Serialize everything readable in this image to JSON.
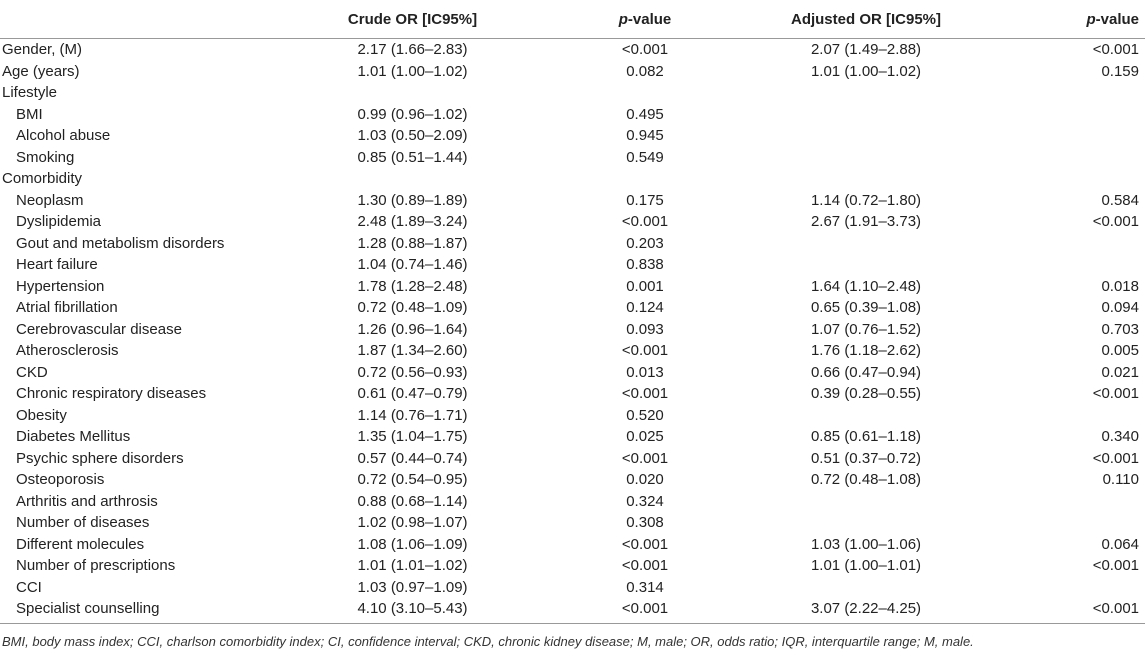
{
  "table": {
    "header": [
      null,
      "Crude OR [IC95%]",
      "p-value",
      "Adjusted OR [IC95%]",
      "p-value"
    ],
    "rows": [
      {
        "cells": [
          "Gender, (M)",
          "2.17 (1.66–2.83)",
          "<0.001",
          "2.07 (1.49–2.88)",
          "<0.001"
        ]
      },
      {
        "cells": [
          "Age (years)",
          "1.01 (1.00–1.02)",
          "0.082",
          "1.01 (1.00–1.02)",
          "0.159"
        ]
      },
      {
        "cells": [
          "Lifestyle",
          null,
          null,
          null,
          null
        ]
      },
      {
        "cells": [
          "BMI",
          "0.99 (0.96–1.02)",
          "0.495",
          null,
          null
        ],
        "indent": true
      },
      {
        "cells": [
          "Alcohol abuse",
          "1.03 (0.50–2.09)",
          "0.945",
          null,
          null
        ],
        "indent": true
      },
      {
        "cells": [
          "Smoking",
          "0.85 (0.51–1.44)",
          "0.549",
          null,
          null
        ],
        "indent": true
      },
      {
        "cells": [
          "Comorbidity",
          null,
          null,
          null,
          null
        ]
      },
      {
        "cells": [
          "Neoplasm",
          "1.30 (0.89–1.89)",
          "0.175",
          "1.14 (0.72–1.80)",
          "0.584"
        ],
        "indent": true
      },
      {
        "cells": [
          "Dyslipidemia",
          "2.48 (1.89–3.24)",
          "<0.001",
          "2.67 (1.91–3.73)",
          "<0.001"
        ],
        "indent": true
      },
      {
        "cells": [
          "Gout and metabolism disorders",
          "1.28 (0.88–1.87)",
          "0.203",
          null,
          null
        ],
        "indent": true
      },
      {
        "cells": [
          "Heart failure",
          "1.04 (0.74–1.46)",
          "0.838",
          null,
          null
        ],
        "indent": true
      },
      {
        "cells": [
          "Hypertension",
          "1.78 (1.28–2.48)",
          "0.001",
          "1.64 (1.10–2.48)",
          "0.018"
        ],
        "indent": true
      },
      {
        "cells": [
          "Atrial fibrillation",
          "0.72 (0.48–1.09)",
          "0.124",
          "0.65 (0.39–1.08)",
          "0.094"
        ],
        "indent": true
      },
      {
        "cells": [
          "Cerebrovascular disease",
          "1.26 (0.96–1.64)",
          "0.093",
          "1.07 (0.76–1.52)",
          "0.703"
        ],
        "indent": true
      },
      {
        "cells": [
          "Atherosclerosis",
          "1.87 (1.34–2.60)",
          "<0.001",
          "1.76 (1.18–2.62)",
          "0.005"
        ],
        "indent": true
      },
      {
        "cells": [
          "CKD",
          "0.72 (0.56–0.93)",
          "0.013",
          "0.66 (0.47–0.94)",
          "0.021"
        ],
        "indent": true
      },
      {
        "cells": [
          "Chronic respiratory diseases",
          "0.61 (0.47–0.79)",
          "<0.001",
          "0.39 (0.28–0.55)",
          "<0.001"
        ],
        "indent": true
      },
      {
        "cells": [
          "Obesity",
          "1.14 (0.76–1.71)",
          "0.520",
          null,
          null
        ],
        "indent": true
      },
      {
        "cells": [
          "Diabetes Mellitus",
          "1.35 (1.04–1.75)",
          "0.025",
          "0.85 (0.61–1.18)",
          "0.340"
        ],
        "indent": true
      },
      {
        "cells": [
          "Psychic sphere disorders",
          "0.57 (0.44–0.74)",
          "<0.001",
          "0.51 (0.37–0.72)",
          "<0.001"
        ],
        "indent": true
      },
      {
        "cells": [
          "Osteoporosis",
          "0.72 (0.54–0.95)",
          "0.020",
          "0.72 (0.48–1.08)",
          "0.110"
        ],
        "indent": true
      },
      {
        "cells": [
          "Arthritis and arthrosis",
          "0.88 (0.68–1.14)",
          "0.324",
          null,
          null
        ],
        "indent": true
      },
      {
        "cells": [
          "Number of diseases",
          "1.02 (0.98–1.07)",
          "0.308",
          null,
          null
        ],
        "indent": true
      },
      {
        "cells": [
          "Different molecules",
          "1.08 (1.06–1.09)",
          "<0.001",
          "1.03 (1.00–1.06)",
          "0.064"
        ],
        "indent": true
      },
      {
        "cells": [
          "Number of prescriptions",
          "1.01 (1.01–1.02)",
          "<0.001",
          "1.01 (1.00–1.01)",
          "<0.001"
        ],
        "indent": true
      },
      {
        "cells": [
          "CCI",
          "1.03 (0.97–1.09)",
          "0.314",
          null,
          null
        ],
        "indent": true
      },
      {
        "cells": [
          "Specialist counselling",
          "4.10 (3.10–5.43)",
          "<0.001",
          "3.07 (2.22–4.25)",
          "<0.001"
        ],
        "indent": true
      }
    ],
    "footnote": "BMI, body mass index; CCI, charlson comorbidity index; CI, confidence interval; CKD, chronic kidney disease; M, male; OR, odds ratio; IQR, interquartile range; M, male."
  }
}
